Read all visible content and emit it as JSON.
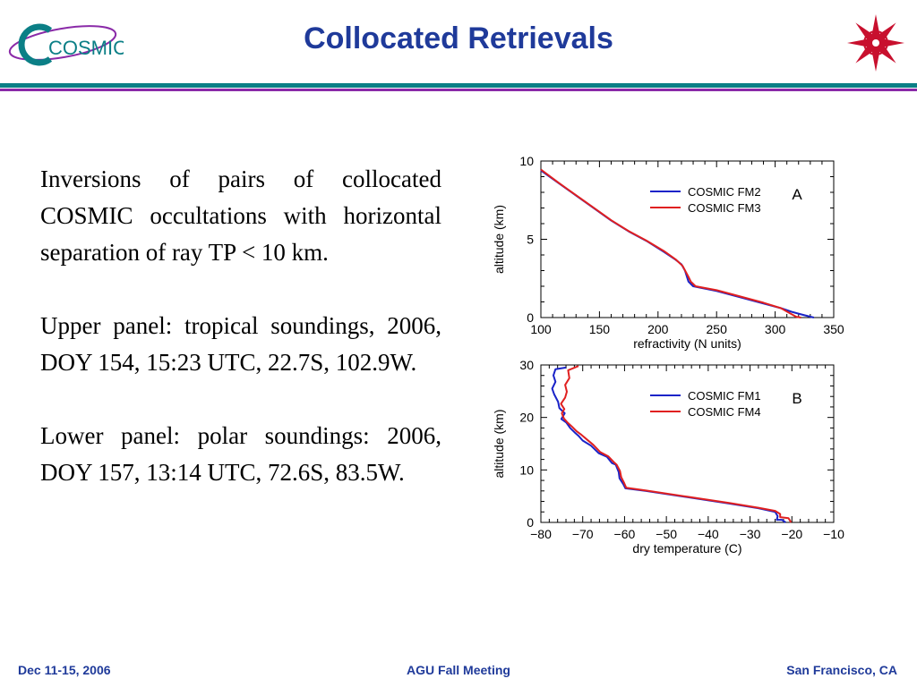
{
  "header": {
    "title": "Collocated Retrievals",
    "logo_text": "COSMIC"
  },
  "body": {
    "paragraphs": [
      "Inversions of pairs of collocated COSMIC occultations with horizontal separation of ray TP < 10 km.",
      "Upper panel: tropical soundings, 2006, DOY 154, 15:23 UTC, 22.7S, 102.9W.",
      "Lower panel: polar soundings: 2006, DOY 157, 13:14 UTC, 72.6S, 83.5W."
    ]
  },
  "footer": {
    "left": "Dec 11-15, 2006",
    "center": "AGU Fall Meeting",
    "right": "San Francisco, CA"
  },
  "colors": {
    "title": "#1f3a9a",
    "rule_teal": "#0b7f86",
    "rule_purple": "#8a2aa8",
    "series_blue": "#1a23c8",
    "series_red": "#e02020",
    "emblem": "#c8102e"
  },
  "chart_data": [
    {
      "type": "line",
      "panel_label": "A",
      "xlabel": "refractivity (N units)",
      "ylabel": "altitude (km)",
      "xlim": [
        100,
        350
      ],
      "ylim": [
        0,
        10
      ],
      "xticks": [
        100,
        150,
        200,
        250,
        300,
        350
      ],
      "yticks": [
        0,
        5,
        10
      ],
      "legend_position": "top-right",
      "series": [
        {
          "name": "COSMIC FM2",
          "color": "#1a23c8",
          "points": [
            [
              100,
              9.4
            ],
            [
              115,
              8.6
            ],
            [
              130,
              7.8
            ],
            [
              145,
              7.0
            ],
            [
              160,
              6.2
            ],
            [
              175,
              5.5
            ],
            [
              190,
              4.9
            ],
            [
              205,
              4.2
            ],
            [
              215,
              3.7
            ],
            [
              220,
              3.4
            ],
            [
              223,
              3.0
            ],
            [
              226,
              2.3
            ],
            [
              230,
              2.0
            ],
            [
              250,
              1.7
            ],
            [
              270,
              1.3
            ],
            [
              290,
              0.9
            ],
            [
              305,
              0.6
            ],
            [
              315,
              0.35
            ],
            [
              325,
              0.15
            ],
            [
              333,
              0.0
            ]
          ]
        },
        {
          "name": "COSMIC FM3",
          "color": "#e02020",
          "points": [
            [
              100,
              9.45
            ],
            [
              115,
              8.62
            ],
            [
              130,
              7.82
            ],
            [
              145,
              7.02
            ],
            [
              160,
              6.22
            ],
            [
              175,
              5.52
            ],
            [
              190,
              4.92
            ],
            [
              205,
              4.25
            ],
            [
              215,
              3.72
            ],
            [
              221,
              3.3
            ],
            [
              226,
              2.6
            ],
            [
              228,
              2.3
            ],
            [
              232,
              2.0
            ],
            [
              250,
              1.75
            ],
            [
              270,
              1.35
            ],
            [
              290,
              0.95
            ],
            [
              305,
              0.6
            ],
            [
              312,
              0.3
            ],
            [
              318,
              0.05
            ],
            [
              322,
              0.0
            ]
          ]
        }
      ]
    },
    {
      "type": "line",
      "panel_label": "B",
      "xlabel": "dry temperature (C)",
      "ylabel": "altitude (km)",
      "xlim": [
        -80,
        -10
      ],
      "ylim": [
        0,
        30
      ],
      "xticks": [
        -80,
        -70,
        -60,
        -50,
        -40,
        -30,
        -20,
        -10
      ],
      "yticks": [
        0,
        10,
        20,
        30
      ],
      "legend_position": "top-right",
      "series": [
        {
          "name": "COSMIC FM1",
          "color": "#1a23c8",
          "points": [
            [
              -74,
              29.5
            ],
            [
              -76.5,
              29.2
            ],
            [
              -77,
              28.0
            ],
            [
              -76.5,
              26.8
            ],
            [
              -77.3,
              25.5
            ],
            [
              -76.8,
              24.4
            ],
            [
              -75.9,
              23.0
            ],
            [
              -75.6,
              21.8
            ],
            [
              -74.3,
              20.8
            ],
            [
              -75.1,
              19.7
            ],
            [
              -73.9,
              19.0
            ],
            [
              -73,
              18.0
            ],
            [
              -72,
              17.2
            ],
            [
              -71,
              16.5
            ],
            [
              -70,
              15.6
            ],
            [
              -68,
              14.6
            ],
            [
              -66.2,
              13.2
            ],
            [
              -64.2,
              12.5
            ],
            [
              -63.0,
              11.3
            ],
            [
              -62.1,
              11.0
            ],
            [
              -61.4,
              9.6
            ],
            [
              -61.2,
              8.4
            ],
            [
              -60.3,
              7.3
            ],
            [
              -59.8,
              6.5
            ],
            [
              -55,
              6.0
            ],
            [
              -45,
              4.8
            ],
            [
              -35,
              3.6
            ],
            [
              -28,
              2.7
            ],
            [
              -24,
              2.0
            ],
            [
              -23.4,
              1.2
            ],
            [
              -23.6,
              0.5
            ],
            [
              -22.4,
              0.5
            ],
            [
              -21.5,
              0.0
            ]
          ]
        },
        {
          "name": "COSMIC FM4",
          "color": "#e02020",
          "points": [
            [
              -71,
              29.8
            ],
            [
              -73.5,
              29.0
            ],
            [
              -73.2,
              27.5
            ],
            [
              -74.2,
              26.2
            ],
            [
              -73.8,
              24.9
            ],
            [
              -74.2,
              23.8
            ],
            [
              -75.2,
              22.6
            ],
            [
              -74.4,
              21.6
            ],
            [
              -75.0,
              20.8
            ],
            [
              -74.5,
              19.8
            ],
            [
              -73.6,
              19.0
            ],
            [
              -72.5,
              18.2
            ],
            [
              -71.5,
              17.4
            ],
            [
              -70.5,
              16.8
            ],
            [
              -69,
              15.8
            ],
            [
              -67.5,
              14.8
            ],
            [
              -65.8,
              13.4
            ],
            [
              -63.9,
              12.6
            ],
            [
              -62.6,
              11.5
            ],
            [
              -61.9,
              11.0
            ],
            [
              -61.1,
              9.8
            ],
            [
              -60.8,
              8.6
            ],
            [
              -60.1,
              7.5
            ],
            [
              -59.6,
              6.6
            ],
            [
              -55,
              6.1
            ],
            [
              -45,
              4.9
            ],
            [
              -35,
              3.7
            ],
            [
              -28,
              2.8
            ],
            [
              -24,
              2.2
            ],
            [
              -22.8,
              1.6
            ],
            [
              -22.8,
              1.0
            ],
            [
              -20.8,
              0.8
            ],
            [
              -20.2,
              0.0
            ]
          ]
        }
      ]
    }
  ]
}
